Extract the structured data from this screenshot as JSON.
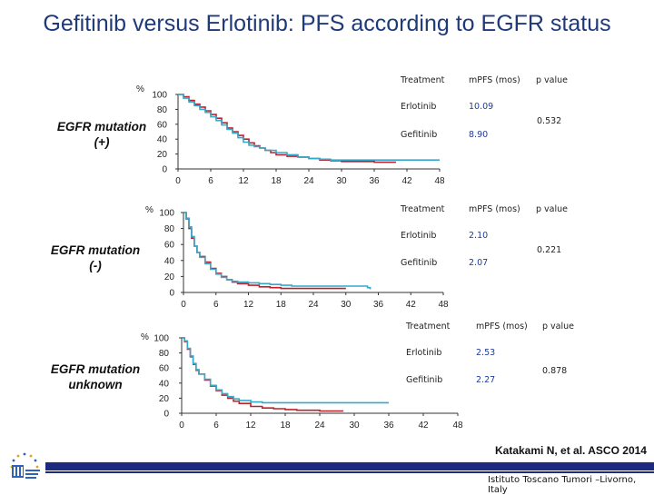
{
  "title": "Gefitinib versus Erlotinib: PFS according to  EGFR status",
  "colors": {
    "erlotinib": "#c0202a",
    "gefitinib": "#34a9cc",
    "title": "#1f3a78",
    "accent": "#1c2a80"
  },
  "panels": [
    {
      "label_line1": "EGFR mutation",
      "label_line2": "(+)",
      "table": {
        "header": [
          "Treatment",
          "mPFS (mos)",
          "p value"
        ],
        "rows": [
          {
            "treatment": "Erlotinib",
            "mpfs": "10.09"
          },
          {
            "treatment": "Gefitinib",
            "mpfs": "8.90"
          }
        ],
        "p_value": "0.532"
      }
    },
    {
      "label_line1": "EGFR mutation",
      "label_line2": "(-)",
      "table": {
        "header": [
          "Treatment",
          "mPFS (mos)",
          "p value"
        ],
        "rows": [
          {
            "treatment": "Erlotinib",
            "mpfs": "2.10"
          },
          {
            "treatment": "Gefitinib",
            "mpfs": "2.07"
          }
        ],
        "p_value": "0.221"
      }
    },
    {
      "label_line1": "EGFR mutation",
      "label_line2": "unknown",
      "table": {
        "header": [
          "Treatment",
          "mPFS (mos)",
          "p value"
        ],
        "rows": [
          {
            "treatment": "Erlotinib",
            "mpfs": "2.53"
          },
          {
            "treatment": "Gefitinib",
            "mpfs": "2.27"
          }
        ],
        "p_value": "0.878"
      }
    }
  ],
  "chart_data": [
    {
      "type": "line",
      "ylabel": "%",
      "xticks": [
        0,
        6,
        12,
        18,
        24,
        30,
        36,
        42,
        48
      ],
      "yticks": [
        0,
        20,
        40,
        60,
        80,
        100
      ],
      "xlim": [
        0,
        48
      ],
      "ylim": [
        0,
        100
      ],
      "series": [
        {
          "name": "Erlotinib",
          "color": "#c0202a",
          "points": [
            [
              0,
              100
            ],
            [
              1,
              97
            ],
            [
              2,
              92
            ],
            [
              3,
              87
            ],
            [
              4,
              83
            ],
            [
              5,
              78
            ],
            [
              6,
              73
            ],
            [
              7,
              68
            ],
            [
              8,
              62
            ],
            [
              9,
              55
            ],
            [
              10,
              50
            ],
            [
              11,
              45
            ],
            [
              12,
              40
            ],
            [
              13,
              35
            ],
            [
              14,
              31
            ],
            [
              15,
              28
            ],
            [
              16,
              25
            ],
            [
              17,
              22
            ],
            [
              18,
              19
            ],
            [
              20,
              17
            ],
            [
              22,
              16
            ],
            [
              24,
              14
            ],
            [
              26,
              12
            ],
            [
              28,
              11
            ],
            [
              30,
              10
            ],
            [
              33,
              10
            ],
            [
              36,
              9
            ],
            [
              40,
              9
            ]
          ]
        },
        {
          "name": "Gefitinib",
          "color": "#34a9cc",
          "points": [
            [
              0,
              100
            ],
            [
              1,
              95
            ],
            [
              2,
              90
            ],
            [
              3,
              85
            ],
            [
              4,
              80
            ],
            [
              5,
              76
            ],
            [
              6,
              70
            ],
            [
              7,
              65
            ],
            [
              8,
              59
            ],
            [
              9,
              53
            ],
            [
              10,
              48
            ],
            [
              11,
              42
            ],
            [
              12,
              36
            ],
            [
              13,
              32
            ],
            [
              14,
              30
            ],
            [
              15,
              28
            ],
            [
              16,
              25
            ],
            [
              18,
              22
            ],
            [
              20,
              19
            ],
            [
              22,
              16
            ],
            [
              24,
              14
            ],
            [
              26,
              13
            ],
            [
              28,
              12
            ],
            [
              30,
              12
            ],
            [
              33,
              12
            ],
            [
              36,
              12
            ],
            [
              40,
              12
            ],
            [
              44,
              12
            ],
            [
              48,
              12
            ]
          ]
        }
      ]
    },
    {
      "type": "line",
      "ylabel": "%",
      "xticks": [
        0,
        6,
        12,
        18,
        24,
        30,
        36,
        42,
        48
      ],
      "yticks": [
        0,
        20,
        40,
        60,
        80,
        100
      ],
      "xlim": [
        0,
        48
      ],
      "ylim": [
        0,
        100
      ],
      "series": [
        {
          "name": "Erlotinib",
          "color": "#c0202a",
          "points": [
            [
              0,
              100
            ],
            [
              0.5,
              92
            ],
            [
              1,
              80
            ],
            [
              1.5,
              68
            ],
            [
              2,
              58
            ],
            [
              2.5,
              50
            ],
            [
              3,
              45
            ],
            [
              4,
              38
            ],
            [
              5,
              30
            ],
            [
              6,
              24
            ],
            [
              7,
              20
            ],
            [
              8,
              16
            ],
            [
              9,
              13
            ],
            [
              10,
              11
            ],
            [
              12,
              9
            ],
            [
              14,
              7
            ],
            [
              16,
              6
            ],
            [
              18,
              5
            ],
            [
              20,
              5
            ],
            [
              22,
              5
            ],
            [
              26,
              5
            ],
            [
              30,
              5
            ]
          ]
        },
        {
          "name": "Gefitinib",
          "color": "#34a9cc",
          "points": [
            [
              0,
              100
            ],
            [
              0.5,
              93
            ],
            [
              1,
              82
            ],
            [
              1.5,
              70
            ],
            [
              2,
              58
            ],
            [
              2.5,
              50
            ],
            [
              3,
              44
            ],
            [
              4,
              36
            ],
            [
              5,
              29
            ],
            [
              6,
              23
            ],
            [
              7,
              19
            ],
            [
              8,
              16
            ],
            [
              9,
              14
            ],
            [
              10,
              13
            ],
            [
              12,
              12
            ],
            [
              14,
              11
            ],
            [
              16,
              10
            ],
            [
              18,
              9
            ],
            [
              20,
              8
            ],
            [
              22,
              8
            ],
            [
              24,
              8
            ],
            [
              26,
              8
            ],
            [
              28,
              8
            ],
            [
              30,
              8
            ],
            [
              32,
              8
            ],
            [
              34,
              6
            ],
            [
              34.5,
              4
            ]
          ]
        }
      ]
    },
    {
      "type": "line",
      "ylabel": "%",
      "xticks": [
        0,
        6,
        12,
        18,
        24,
        30,
        36,
        42,
        48
      ],
      "yticks": [
        0,
        20,
        40,
        60,
        80,
        100
      ],
      "xlim": [
        0,
        48
      ],
      "ylim": [
        0,
        100
      ],
      "series": [
        {
          "name": "Erlotinib",
          "color": "#c0202a",
          "points": [
            [
              0,
              100
            ],
            [
              0.5,
              95
            ],
            [
              1,
              85
            ],
            [
              1.5,
              75
            ],
            [
              2,
              65
            ],
            [
              2.5,
              57
            ],
            [
              3,
              52
            ],
            [
              4,
              44
            ],
            [
              5,
              36
            ],
            [
              6,
              30
            ],
            [
              7,
              24
            ],
            [
              8,
              20
            ],
            [
              9,
              16
            ],
            [
              10,
              13
            ],
            [
              12,
              9
            ],
            [
              14,
              7
            ],
            [
              16,
              6
            ],
            [
              18,
              5
            ],
            [
              20,
              4
            ],
            [
              24,
              3
            ],
            [
              28,
              2
            ]
          ]
        },
        {
          "name": "Gefitinib",
          "color": "#34a9cc",
          "points": [
            [
              0,
              100
            ],
            [
              0.5,
              96
            ],
            [
              1,
              86
            ],
            [
              1.5,
              76
            ],
            [
              2,
              66
            ],
            [
              2.5,
              58
            ],
            [
              3,
              52
            ],
            [
              4,
              45
            ],
            [
              5,
              37
            ],
            [
              6,
              31
            ],
            [
              7,
              26
            ],
            [
              8,
              22
            ],
            [
              9,
              19
            ],
            [
              10,
              17
            ],
            [
              12,
              15
            ],
            [
              14,
              14
            ],
            [
              16,
              14
            ],
            [
              18,
              14
            ],
            [
              20,
              14
            ],
            [
              22,
              14
            ],
            [
              24,
              14
            ],
            [
              26,
              14
            ],
            [
              28,
              14
            ],
            [
              30,
              14
            ],
            [
              32,
              14
            ],
            [
              34,
              14
            ],
            [
              36,
              14
            ]
          ]
        }
      ]
    }
  ],
  "citation": "Katakami N, et al. ASCO 2014",
  "institute": "Istituto Toscano Tumori –Livorno, Italy"
}
